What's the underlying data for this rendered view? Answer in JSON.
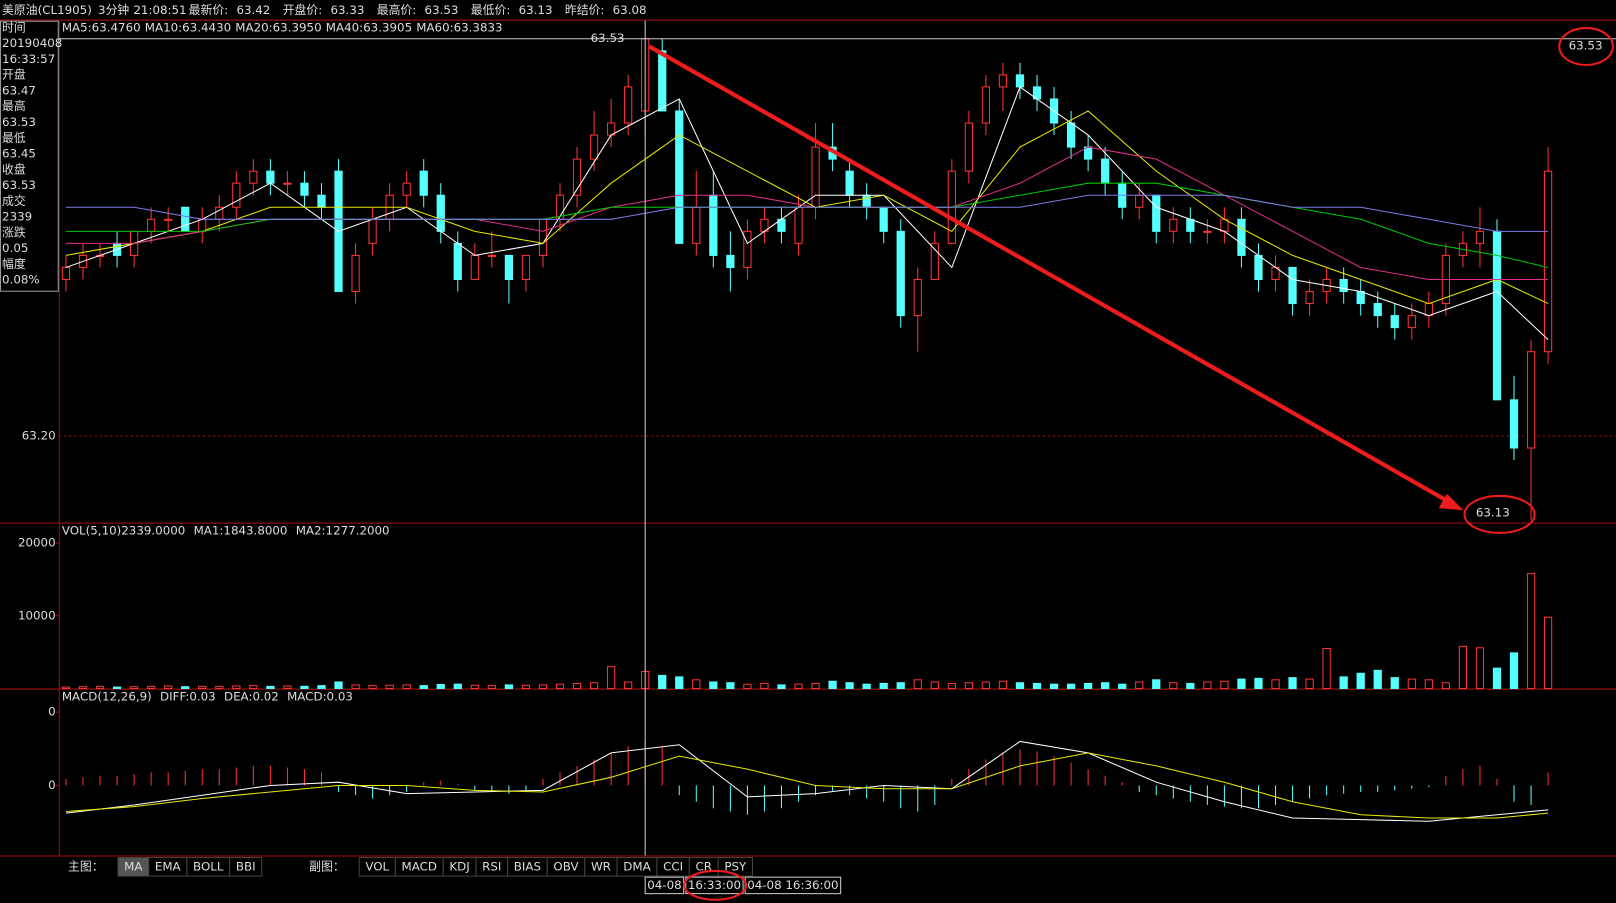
{
  "header": {
    "symbol": "美原油(CL1905)",
    "period": "3分钟",
    "time": "21:08:51",
    "fields": [
      {
        "label": "最新价:",
        "value": "63.42"
      },
      {
        "label": "开盘价:",
        "value": "63.33"
      },
      {
        "label": "最高价:",
        "value": "63.53"
      },
      {
        "label": "最低价:",
        "value": "63.13"
      },
      {
        "label": "昨结价:",
        "value": "63.08"
      }
    ]
  },
  "info_panel": [
    {
      "text": "时间",
      "color": "#dddddd"
    },
    {
      "text": "20190408",
      "color": "#dddddd"
    },
    {
      "text": "16:33:57",
      "color": "#dddddd"
    },
    {
      "text": "开盘",
      "color": "#dddddd"
    },
    {
      "text": "63.47",
      "color": "#00d000"
    },
    {
      "text": "最高",
      "color": "#dddddd"
    },
    {
      "text": "63.53",
      "color": "#ff3232"
    },
    {
      "text": "最低",
      "color": "#dddddd"
    },
    {
      "text": "63.45",
      "color": "#00d000"
    },
    {
      "text": "收盘",
      "color": "#dddddd"
    },
    {
      "text": "63.53",
      "color": "#ff3232"
    },
    {
      "text": "成交",
      "color": "#dddddd"
    },
    {
      "text": "2339",
      "color": "#e8e800"
    },
    {
      "text": "涨跌",
      "color": "#dddddd"
    },
    {
      "text": "0.05",
      "color": "#ff3232"
    },
    {
      "text": "幅度",
      "color": "#dddddd"
    },
    {
      "text": "0.08%",
      "color": "#00d000"
    }
  ],
  "chart_data": [
    {
      "type": "candlestick",
      "ylim": [
        63.128,
        63.545
      ],
      "yticks": [
        {
          "value": 63.2,
          "label": "63.20"
        }
      ],
      "grid": true,
      "up_color": "#ff3232",
      "down_color": "#54ffff",
      "max_label": 63.53,
      "min_label": 63.13,
      "cursor_price": 63.53,
      "open": [
        63.33,
        63.34,
        63.35,
        63.36,
        63.35,
        63.37,
        63.38,
        63.39,
        63.37,
        63.38,
        63.39,
        63.41,
        63.42,
        63.41,
        63.41,
        63.4,
        63.42,
        63.32,
        63.36,
        63.38,
        63.4,
        63.42,
        63.4,
        63.36,
        63.33,
        63.35,
        63.35,
        63.33,
        63.35,
        63.38,
        63.4,
        63.43,
        63.45,
        63.46,
        63.47,
        63.52,
        63.47,
        63.36,
        63.4,
        63.35,
        63.34,
        63.37,
        63.38,
        63.36,
        63.39,
        63.44,
        63.42,
        63.4,
        63.39,
        63.37,
        63.3,
        63.33,
        63.36,
        63.42,
        63.46,
        63.49,
        63.5,
        63.49,
        63.48,
        63.46,
        63.44,
        63.43,
        63.41,
        63.39,
        63.4,
        63.37,
        63.38,
        63.37,
        63.37,
        63.38,
        63.35,
        63.33,
        63.34,
        63.31,
        63.32,
        63.33,
        63.32,
        63.31,
        63.3,
        63.29,
        63.3,
        63.31,
        63.35,
        63.36,
        63.37,
        63.23,
        63.19,
        63.27
      ],
      "high": [
        63.35,
        63.36,
        63.36,
        63.37,
        63.37,
        63.39,
        63.39,
        63.39,
        63.39,
        63.4,
        63.42,
        63.43,
        63.43,
        63.42,
        63.42,
        63.41,
        63.43,
        63.36,
        63.39,
        63.41,
        63.42,
        63.43,
        63.41,
        63.37,
        63.36,
        63.37,
        63.35,
        63.35,
        63.38,
        63.41,
        63.44,
        63.47,
        63.48,
        63.5,
        63.53,
        63.53,
        63.48,
        63.42,
        63.42,
        63.37,
        63.38,
        63.39,
        63.39,
        63.4,
        63.46,
        63.46,
        63.43,
        63.41,
        63.39,
        63.38,
        63.34,
        63.37,
        63.43,
        63.47,
        63.5,
        63.51,
        63.51,
        63.5,
        63.49,
        63.47,
        63.45,
        63.44,
        63.42,
        63.41,
        63.4,
        63.39,
        63.39,
        63.38,
        63.39,
        63.39,
        63.36,
        63.35,
        63.34,
        63.33,
        63.34,
        63.34,
        63.33,
        63.32,
        63.31,
        63.31,
        63.32,
        63.36,
        63.37,
        63.39,
        63.38,
        63.25,
        63.28,
        63.44
      ],
      "low": [
        63.32,
        63.33,
        63.34,
        63.34,
        63.34,
        63.36,
        63.37,
        63.37,
        63.36,
        63.37,
        63.38,
        63.4,
        63.4,
        63.4,
        63.39,
        63.38,
        63.32,
        63.31,
        63.35,
        63.37,
        63.39,
        63.39,
        63.36,
        63.32,
        63.33,
        63.34,
        63.31,
        63.32,
        63.34,
        63.37,
        63.39,
        63.42,
        63.44,
        63.45,
        63.45,
        63.47,
        63.36,
        63.35,
        63.34,
        63.32,
        63.33,
        63.36,
        63.36,
        63.35,
        63.38,
        63.42,
        63.39,
        63.38,
        63.36,
        63.29,
        63.27,
        63.33,
        63.36,
        63.41,
        63.45,
        63.47,
        63.48,
        63.47,
        63.45,
        63.43,
        63.42,
        63.4,
        63.38,
        63.38,
        63.36,
        63.36,
        63.36,
        63.36,
        63.36,
        63.34,
        63.32,
        63.32,
        63.3,
        63.3,
        63.31,
        63.31,
        63.3,
        63.29,
        63.28,
        63.28,
        63.29,
        63.3,
        63.34,
        63.34,
        63.23,
        63.18,
        63.13,
        63.26
      ],
      "close": [
        63.34,
        63.35,
        63.35,
        63.35,
        63.37,
        63.38,
        63.38,
        63.37,
        63.38,
        63.39,
        63.41,
        63.42,
        63.41,
        63.41,
        63.4,
        63.39,
        63.32,
        63.35,
        63.38,
        63.4,
        63.41,
        63.4,
        63.37,
        63.33,
        63.35,
        63.35,
        63.33,
        63.35,
        63.38,
        63.4,
        63.43,
        63.45,
        63.46,
        63.49,
        63.53,
        63.47,
        63.36,
        63.39,
        63.35,
        63.34,
        63.37,
        63.38,
        63.37,
        63.39,
        63.44,
        63.43,
        63.4,
        63.39,
        63.37,
        63.3,
        63.33,
        63.36,
        63.42,
        63.46,
        63.49,
        63.5,
        63.49,
        63.48,
        63.46,
        63.44,
        63.43,
        63.41,
        63.39,
        63.4,
        63.37,
        63.38,
        63.37,
        63.37,
        63.38,
        63.35,
        63.33,
        63.34,
        63.31,
        63.32,
        63.33,
        63.32,
        63.31,
        63.3,
        63.29,
        63.3,
        63.31,
        63.35,
        63.36,
        63.37,
        63.23,
        63.19,
        63.27,
        63.42
      ],
      "ma_x": [
        0,
        4,
        8,
        12,
        16,
        20,
        24,
        28,
        32,
        36,
        40,
        44,
        48,
        52,
        56,
        60,
        64,
        68,
        72,
        76,
        80,
        84,
        87
      ],
      "ma_series": [
        {
          "label": "MA5:63.4760",
          "color": "#ffffff",
          "values": [
            63.34,
            63.36,
            63.38,
            63.41,
            63.37,
            63.39,
            63.35,
            63.36,
            63.45,
            63.48,
            63.36,
            63.4,
            63.4,
            63.34,
            63.49,
            63.45,
            63.39,
            63.37,
            63.33,
            63.32,
            63.3,
            63.32,
            63.28
          ]
        },
        {
          "label": "MA10:63.4430",
          "color": "#e8e800",
          "values": [
            63.35,
            63.36,
            63.37,
            63.39,
            63.39,
            63.39,
            63.37,
            63.36,
            63.41,
            63.45,
            63.42,
            63.39,
            63.4,
            63.37,
            63.44,
            63.47,
            63.42,
            63.38,
            63.35,
            63.33,
            63.31,
            63.33,
            63.31
          ]
        },
        {
          "label": "MA20:63.3950",
          "color": "#e0308c",
          "values": [
            63.36,
            63.36,
            63.37,
            63.38,
            63.38,
            63.38,
            63.38,
            63.37,
            63.39,
            63.4,
            63.4,
            63.39,
            63.39,
            63.39,
            63.41,
            63.44,
            63.43,
            63.4,
            63.37,
            63.34,
            63.33,
            63.33,
            63.33
          ]
        },
        {
          "label": "MA40:63.3905",
          "color": "#00c800",
          "values": [
            63.37,
            63.37,
            63.37,
            63.38,
            63.38,
            63.38,
            63.38,
            63.38,
            63.39,
            63.39,
            63.39,
            63.39,
            63.39,
            63.39,
            63.4,
            63.41,
            63.41,
            63.4,
            63.39,
            63.38,
            63.36,
            63.35,
            63.34
          ]
        },
        {
          "label": "MA60:63.3833",
          "color": "#7a7ae8",
          "values": [
            63.39,
            63.39,
            63.38,
            63.38,
            63.38,
            63.38,
            63.38,
            63.38,
            63.38,
            63.39,
            63.39,
            63.39,
            63.39,
            63.39,
            63.39,
            63.4,
            63.4,
            63.4,
            63.39,
            63.39,
            63.38,
            63.37,
            63.37
          ]
        }
      ]
    },
    {
      "type": "volume",
      "ylim": [
        0,
        22800
      ],
      "yticks": [
        20000,
        10000
      ],
      "legend": [
        {
          "text": "VOL(5,10)2339.0000",
          "color": "#e8e800"
        },
        {
          "text": "MA1:1843.8000",
          "color": "#dddddd"
        },
        {
          "text": "MA2:1277.2000",
          "color": "#e8e800"
        }
      ],
      "values": [
        200,
        250,
        300,
        200,
        250,
        300,
        350,
        250,
        300,
        300,
        350,
        400,
        300,
        350,
        300,
        400,
        900,
        500,
        400,
        450,
        500,
        400,
        550,
        600,
        450,
        400,
        500,
        450,
        500,
        600,
        700,
        800,
        3000,
        900,
        2339,
        1800,
        1600,
        1200,
        900,
        800,
        600,
        700,
        500,
        600,
        700,
        1000,
        800,
        600,
        700,
        800,
        1200,
        900,
        700,
        800,
        900,
        1000,
        800,
        700,
        600,
        600,
        700,
        800,
        600,
        900,
        1200,
        800,
        700,
        900,
        1000,
        1300,
        1400,
        1200,
        1500,
        1300,
        5500,
        1600,
        2100,
        2500,
        1500,
        1300,
        1200,
        800,
        5800,
        5600,
        2800,
        4900,
        15800,
        9800
      ]
    },
    {
      "type": "macd",
      "ylim": [
        -0.043,
        0.0595
      ],
      "yticks": [
        {
          "value": 0.045,
          "label": "0"
        },
        0
      ],
      "legend": [
        {
          "text": "MACD(12,26,9)",
          "color": "#dddddd"
        },
        {
          "text": "DIFF:0.03",
          "color": "#dddddd"
        },
        {
          "text": "DEA:0.02",
          "color": "#e8e800"
        },
        {
          "text": "MACD:0.03",
          "color": "#e0308c"
        }
      ],
      "histogram": [
        0.004,
        0.005,
        0.006,
        0.006,
        0.007,
        0.008,
        0.008,
        0.009,
        0.01,
        0.01,
        0.011,
        0.012,
        0.012,
        0.011,
        0.01,
        0.008,
        -0.004,
        -0.006,
        -0.008,
        -0.006,
        -0.004,
        0.002,
        0.003,
        0.001,
        -0.003,
        -0.004,
        -0.005,
        -0.003,
        0.004,
        0.008,
        0.012,
        0.016,
        0.02,
        0.024,
        0.028,
        0.024,
        -0.006,
        -0.01,
        -0.014,
        -0.016,
        -0.018,
        -0.016,
        -0.014,
        -0.01,
        -0.006,
        -0.004,
        -0.006,
        -0.008,
        -0.01,
        -0.014,
        -0.016,
        -0.012,
        0.004,
        0.01,
        0.016,
        0.02,
        0.022,
        0.021,
        0.018,
        0.014,
        0.01,
        0.006,
        0.002,
        -0.004,
        -0.006,
        -0.008,
        -0.01,
        -0.012,
        -0.013,
        -0.014,
        -0.014,
        -0.012,
        -0.01,
        -0.008,
        -0.006,
        -0.005,
        -0.004,
        -0.004,
        -0.003,
        -0.002,
        -0.001,
        0.006,
        0.01,
        0.012,
        0.004,
        -0.01,
        -0.012,
        0.008
      ],
      "line_x": [
        0,
        4,
        8,
        12,
        16,
        20,
        24,
        28,
        32,
        36,
        40,
        44,
        48,
        52,
        56,
        60,
        64,
        68,
        72,
        76,
        80,
        84,
        87
      ],
      "series": [
        {
          "color": "#ffffff",
          "values": [
            -0.017,
            -0.012,
            -0.006,
            0.0,
            0.002,
            -0.005,
            -0.004,
            -0.003,
            0.02,
            0.025,
            -0.007,
            -0.005,
            0.0,
            -0.002,
            0.027,
            0.02,
            0.002,
            -0.01,
            -0.02,
            -0.021,
            -0.022,
            -0.018,
            -0.015
          ]
        },
        {
          "color": "#e8e800",
          "values": [
            -0.016,
            -0.013,
            -0.008,
            -0.004,
            0.0,
            0.0,
            -0.003,
            -0.004,
            0.005,
            0.018,
            0.01,
            0.0,
            -0.002,
            -0.002,
            0.012,
            0.02,
            0.012,
            0.002,
            -0.01,
            -0.018,
            -0.02,
            -0.02,
            -0.017
          ]
        }
      ]
    }
  ],
  "toolbar": {
    "main_label": "主图：",
    "main_buttons": [
      "MA",
      "EMA",
      "BOLL",
      "BBI"
    ],
    "sub_label": "副图：",
    "sub_buttons": [
      "VOL",
      "MACD",
      "KDJ",
      "RSI",
      "BIAS",
      "OBV",
      "WR",
      "DMA",
      "CCI",
      "CR",
      "PSY"
    ]
  },
  "time_bar": [
    "04-08",
    "16:33:00",
    "04-08 16:36:00"
  ]
}
